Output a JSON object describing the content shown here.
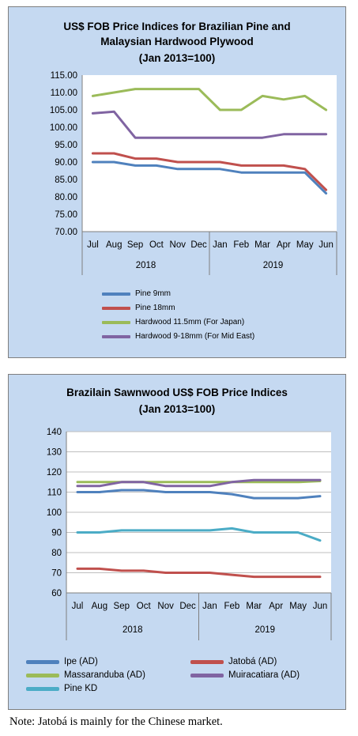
{
  "chart_data": [
    {
      "type": "line",
      "title_lines": [
        "US$ FOB Price Indices for Brazilian Pine and",
        "Malaysian Hardwood Plywood",
        "(Jan 2013=100)"
      ],
      "categories": [
        "Jul",
        "Aug",
        "Sep",
        "Oct",
        "Nov",
        "Dec",
        "Jan",
        "Feb",
        "Mar",
        "Apr",
        "May",
        "Jun"
      ],
      "year_groups": [
        {
          "label": "2018",
          "start": 0,
          "end": 5
        },
        {
          "label": "2019",
          "start": 6,
          "end": 11
        }
      ],
      "ylim": [
        70,
        115
      ],
      "yticks": [
        "115.00",
        "110.00",
        "105.00",
        "100.00",
        "95.00",
        "90.00",
        "85.00",
        "80.00",
        "75.00",
        "70.00"
      ],
      "grid": false,
      "legend_position": "bottom",
      "series": [
        {
          "name": "Pine 9mm",
          "color": "#4f81bd",
          "values": [
            90,
            90,
            89,
            89,
            88,
            88,
            88,
            87,
            87,
            87,
            87,
            81
          ]
        },
        {
          "name": "Pine 18mm",
          "color": "#c0504d",
          "values": [
            92.5,
            92.5,
            91,
            91,
            90,
            90,
            90,
            89,
            89,
            89,
            88,
            82
          ]
        },
        {
          "name": "Hardwood 11.5mm (For Japan)",
          "color": "#9bbb59",
          "values": [
            109,
            110,
            111,
            111,
            111,
            111,
            105,
            105,
            109,
            108,
            109,
            105
          ]
        },
        {
          "name": "Hardwood 9-18mm (For Mid East)",
          "color": "#8064a2",
          "values": [
            104,
            104.5,
            97,
            97,
            97,
            97,
            97,
            97,
            97,
            98,
            98,
            98
          ]
        }
      ]
    },
    {
      "type": "line",
      "title_lines": [
        "Brazilain Sawnwood US$ FOB Price Indices",
        "(Jan 2013=100)"
      ],
      "categories": [
        "Jul",
        "Aug",
        "Sep",
        "Oct",
        "Nov",
        "Dec",
        "Jan",
        "Feb",
        "Mar",
        "Apr",
        "May",
        "Jun"
      ],
      "year_groups": [
        {
          "label": "2018",
          "start": 0,
          "end": 5
        },
        {
          "label": "2019",
          "start": 6,
          "end": 11
        }
      ],
      "ylim": [
        60,
        140
      ],
      "yticks": [
        "140",
        "130",
        "120",
        "110",
        "100",
        "90",
        "80",
        "70",
        "60"
      ],
      "grid": true,
      "legend_position": "bottom",
      "series": [
        {
          "name": "Ipe (AD)",
          "color": "#4f81bd",
          "values": [
            110,
            110,
            111,
            111,
            110,
            110,
            110,
            109,
            107,
            107,
            107,
            108
          ]
        },
        {
          "name": "Jatobá (AD)",
          "color": "#c0504d",
          "values": [
            72,
            72,
            71,
            71,
            70,
            70,
            70,
            69,
            68,
            68,
            68,
            68
          ]
        },
        {
          "name": "Massaranduba (AD)",
          "color": "#9bbb59",
          "values": [
            115,
            115,
            115,
            115,
            115,
            115,
            115,
            115,
            115,
            115,
            115,
            115.5
          ]
        },
        {
          "name": "Muiracatiara (AD)",
          "color": "#8064a2",
          "values": [
            113,
            113,
            115,
            115,
            113,
            113,
            113,
            115,
            116,
            116,
            116,
            116
          ]
        },
        {
          "name": "Pine KD",
          "color": "#4bacc6",
          "values": [
            90,
            90,
            91,
            91,
            91,
            91,
            91,
            92,
            90,
            90,
            90,
            86
          ]
        }
      ]
    }
  ],
  "note": "Note: Jatobá is mainly for the Chinese market."
}
